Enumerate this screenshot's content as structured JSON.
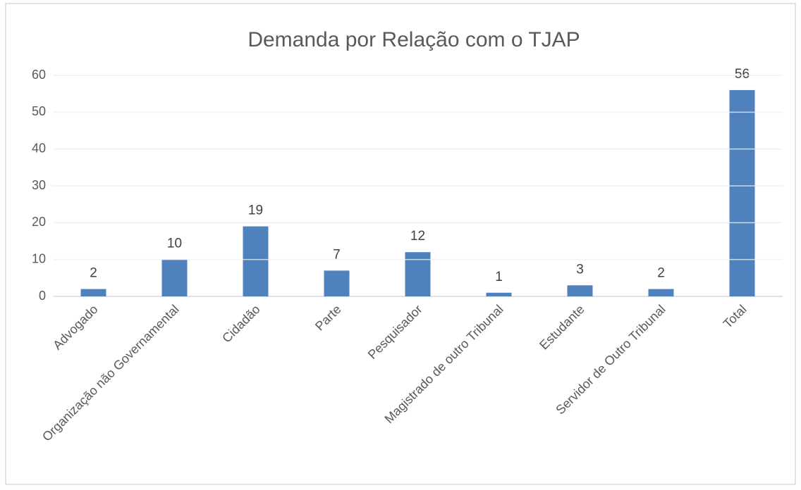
{
  "chart_data": {
    "type": "bar",
    "title": "Demanda por Relação com o TJAP",
    "categories": [
      "Advogado",
      "Organização não Governamental",
      "Cidadão",
      "Parte",
      "Pesquisador",
      "Magistrado de outro Tribunal",
      "Estudante",
      "Servidor de Outro Tribunal",
      "Total"
    ],
    "values": [
      2,
      10,
      19,
      7,
      12,
      1,
      3,
      2,
      56
    ],
    "color": "#4f81bd",
    "ylim": [
      0,
      60
    ],
    "yticks": [
      0,
      10,
      20,
      30,
      40,
      50,
      60
    ],
    "grid": true
  }
}
